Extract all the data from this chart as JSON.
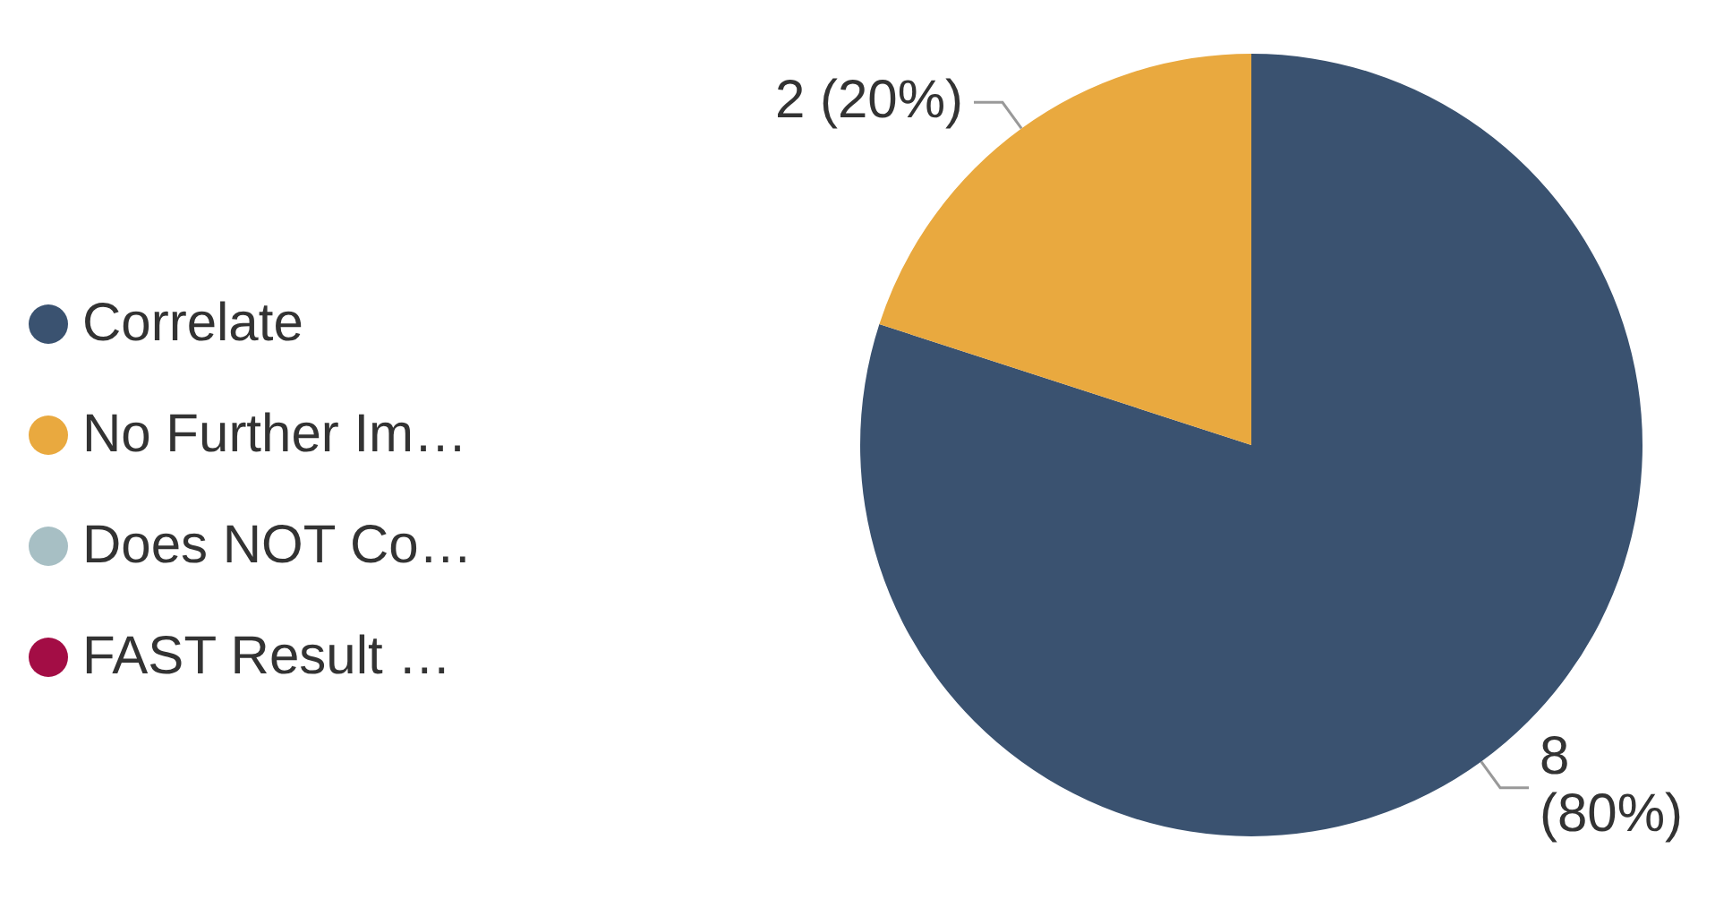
{
  "chart_data": {
    "type": "pie",
    "categories": [
      "Correlate",
      "No Further Im…",
      "Does NOT Co…",
      "FAST Result …"
    ],
    "values": [
      8,
      2,
      0,
      0
    ],
    "colors": [
      "#3a5270",
      "#e9a93f",
      "#a7bfc4",
      "#a30d45"
    ],
    "value_labels": [
      "8 (80%)",
      "2 (20%)",
      null,
      null
    ],
    "legend": "left"
  }
}
